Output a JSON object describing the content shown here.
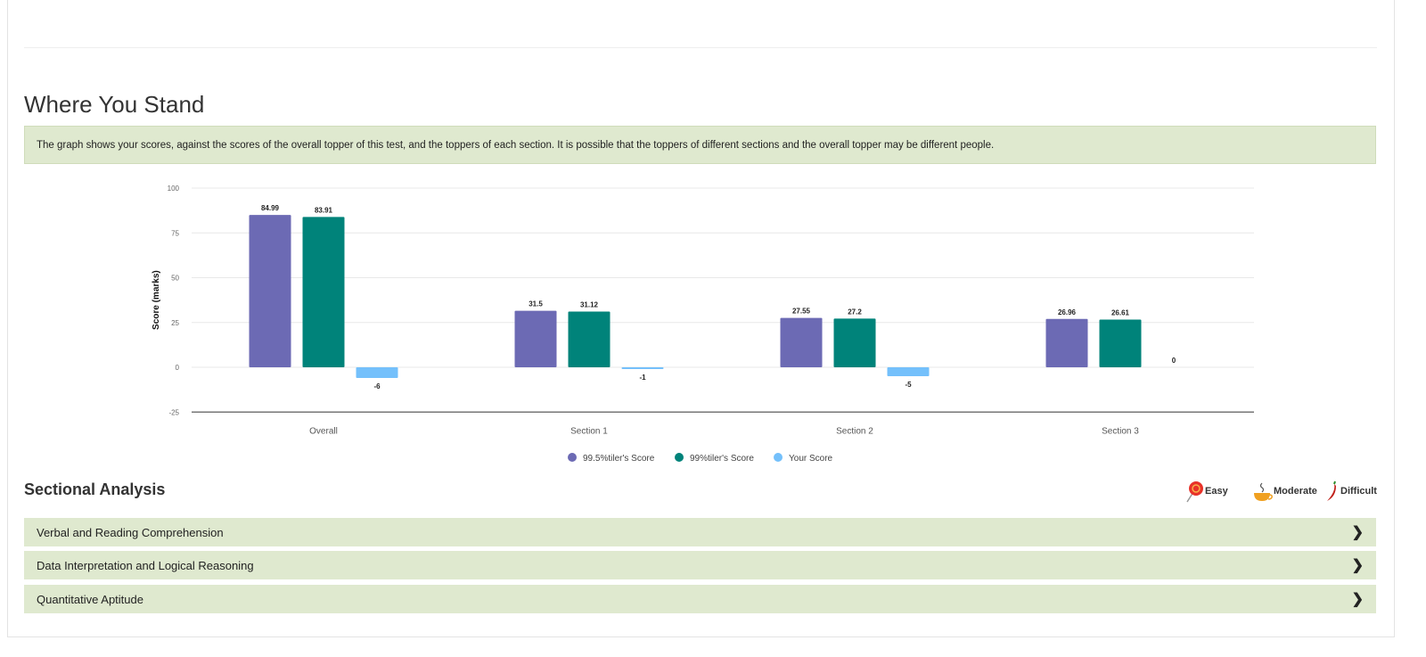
{
  "title": "Where You Stand",
  "info_text": "The graph shows your scores, against the scores of the overall topper of this test, and the toppers of each section. It is possible that the toppers of different sections and the overall topper may be different people.",
  "chart_data": {
    "type": "bar",
    "categories": [
      "Overall",
      "Section 1",
      "Section 2",
      "Section 3"
    ],
    "series": [
      {
        "name": "99.5%tiler's Score",
        "color": "#6c6ab4",
        "values": [
          84.99,
          31.5,
          27.55,
          26.96
        ]
      },
      {
        "name": "99%tiler's Score",
        "color": "#00837a",
        "values": [
          83.91,
          31.12,
          27.2,
          26.61
        ]
      },
      {
        "name": "Your Score",
        "color": "#74c0fb",
        "values": [
          -6,
          -1,
          -5,
          0
        ]
      }
    ],
    "ylabel": "Score (marks)",
    "xlabel": "",
    "ylim": [
      -25,
      100
    ],
    "yticks": [
      100,
      75,
      50,
      25,
      0,
      -25
    ],
    "grid": true,
    "legend": "bottom"
  },
  "sectional": {
    "title": "Sectional Analysis",
    "difficulty": [
      {
        "label": "Easy",
        "icon": "lollipop-icon"
      },
      {
        "label": "Moderate",
        "icon": "tea-cup-icon"
      },
      {
        "label": "Difficult",
        "icon": "chili-icon"
      }
    ],
    "items": [
      {
        "label": "Verbal and Reading Comprehension"
      },
      {
        "label": "Data Interpretation and Logical Reasoning"
      },
      {
        "label": "Quantitative Aptitude"
      }
    ]
  }
}
